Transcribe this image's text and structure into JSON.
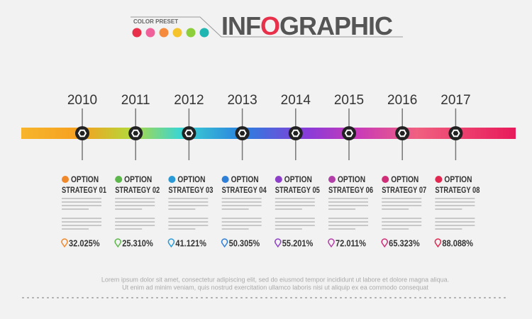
{
  "header": {
    "preset_label": "COLOR PRESET",
    "title_parts": [
      "INF",
      "O",
      "GRAPHIC"
    ],
    "preset_colors": [
      "#e8304a",
      "#f0609a",
      "#f58a3c",
      "#f5c32c",
      "#8ccf3a",
      "#1fb5b0"
    ]
  },
  "items": [
    {
      "year": "2010",
      "line1": "OPTION",
      "line2": "STRATEGY 01",
      "percent": "32.025%",
      "color": "#f0892b"
    },
    {
      "year": "2011",
      "line1": "OPTION",
      "line2": "STRATEGY 02",
      "percent": "25.310%",
      "color": "#5cb84a"
    },
    {
      "year": "2012",
      "line1": "OPTION",
      "line2": "STRATEGY 03",
      "percent": "41.121%",
      "color": "#2a9ad6"
    },
    {
      "year": "2013",
      "line1": "OPTION",
      "line2": "STRATEGY 04",
      "percent": "50.305%",
      "color": "#2e7fd8"
    },
    {
      "year": "2014",
      "line1": "OPTION",
      "line2": "STRATEGY 05",
      "percent": "55.201%",
      "color": "#8e3fc8"
    },
    {
      "year": "2015",
      "line1": "OPTION",
      "line2": "STRATEGY 06",
      "percent": "72.011%",
      "color": "#b23fa8"
    },
    {
      "year": "2016",
      "line1": "OPTION",
      "line2": "STRATEGY 07",
      "percent": "65.323%",
      "color": "#d02e78"
    },
    {
      "year": "2017",
      "line1": "OPTION",
      "line2": "STRATEGY 08",
      "percent": "88.088%",
      "color": "#e02850"
    }
  ],
  "footer": {
    "line1": "Lorem ipsum dolor sit amet, consectetur adipiscing elit, sed do eiusmod tempor incididunt ut labore et dolore magna aliqua.",
    "line2": "Ut enim ad minim veniam, quis nostrud exercitation ullamco laboris nisi ut aliquip ex ea commodo consequat"
  }
}
